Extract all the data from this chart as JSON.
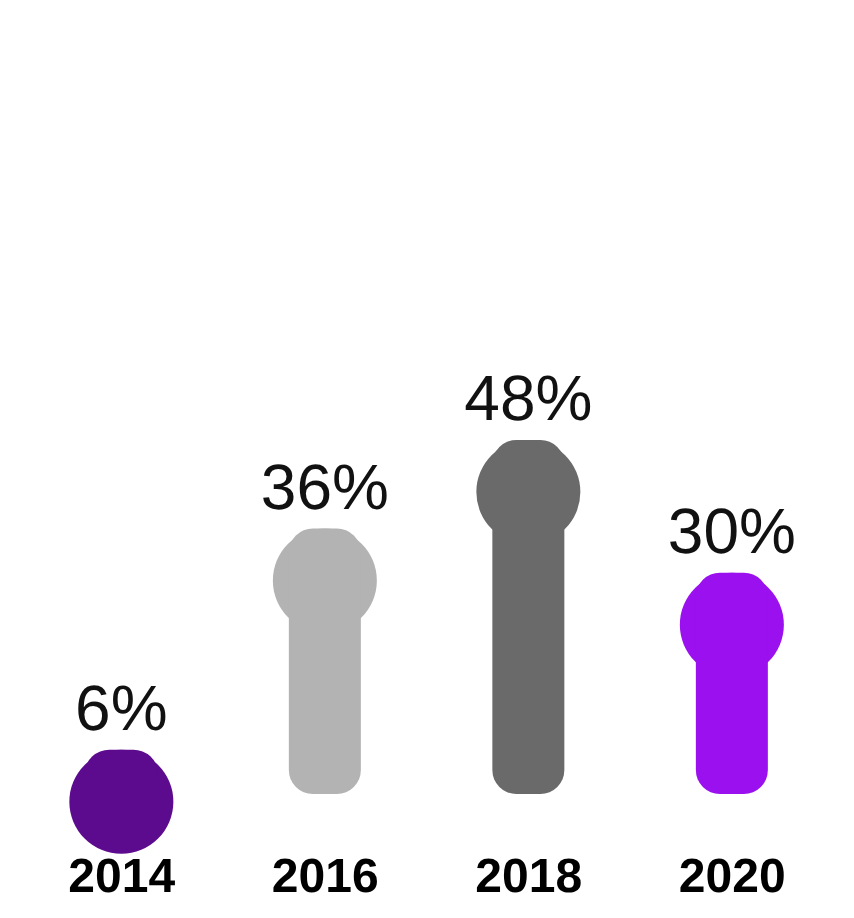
{
  "chart_data": {
    "type": "bar",
    "categories": [
      "2014",
      "2016",
      "2018",
      "2020"
    ],
    "values": [
      6,
      36,
      48,
      30
    ],
    "colors": [
      "#5c0a8e",
      "#b3b3b3",
      "#6a6a6a",
      "#9a10ee"
    ],
    "value_labels": [
      "6%",
      "36%",
      "48%",
      "30%"
    ]
  }
}
